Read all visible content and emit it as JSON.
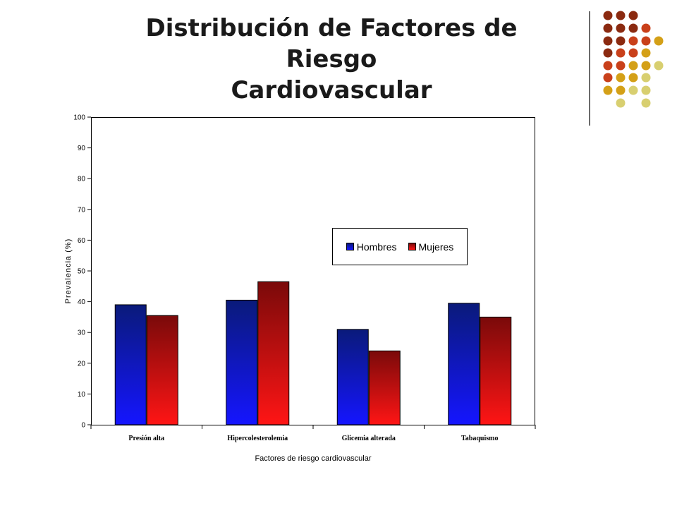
{
  "slide": {
    "title_line1": "Distribución de Factores de Riesgo",
    "title_line2": "Cardiovascular"
  },
  "decoration": {
    "dot_colors": [
      "#8b2a10",
      "#c9401a",
      "#d4a017",
      "#d8cf70"
    ],
    "divider_color": "#6b6b6b"
  },
  "chart_data": {
    "type": "bar",
    "categories": [
      "Presión alta",
      "Hipercolesterolemia",
      "Glicemia alterada",
      "Tabaquismo"
    ],
    "series": [
      {
        "name": "Hombres",
        "values": [
          39,
          40.5,
          31,
          39.5
        ],
        "color_top": "#0a1a7a",
        "color_bottom": "#1515ff"
      },
      {
        "name": "Mujeres",
        "values": [
          35.5,
          46.5,
          24,
          35
        ],
        "color_top": "#7a0a0a",
        "color_bottom": "#ff1515"
      }
    ],
    "xlabel": "Factores de riesgo cardiovascular",
    "ylabel": "Prevalencia (%)",
    "ylim": [
      0,
      100
    ],
    "yticks": [
      "0",
      "10",
      "20",
      "30",
      "40",
      "50",
      "60",
      "70",
      "80",
      "90",
      "100"
    ],
    "grid": false,
    "legend_position": "center-right"
  }
}
